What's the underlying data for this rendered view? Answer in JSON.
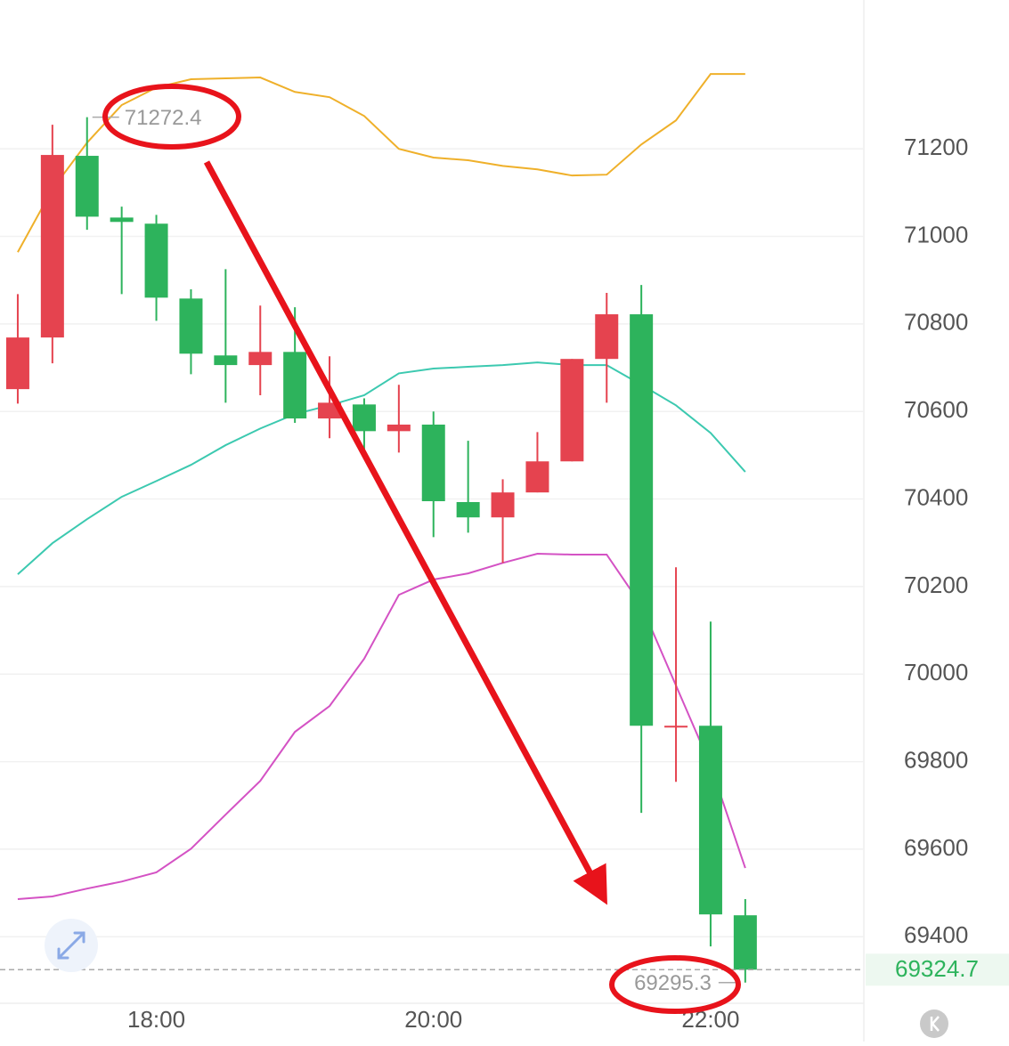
{
  "chart_data": {
    "type": "candlestick",
    "categories": [
      null,
      null,
      null,
      null,
      "18:00",
      null,
      null,
      null,
      null,
      null,
      null,
      null,
      "20:00",
      null,
      null,
      null,
      null,
      null,
      null,
      null,
      "22:00",
      null
    ],
    "open": [
      70651,
      70769,
      71184,
      71043,
      71029,
      70858,
      70728,
      70706,
      70736,
      70584,
      70616,
      70555,
      70570,
      70393,
      70358,
      70415,
      70486,
      70720,
      70822,
      69882,
      69882,
      69449
    ],
    "high": [
      70868,
      71255,
      71272.4,
      71068,
      71049,
      70879,
      70925,
      70842,
      70838,
      70726,
      70630,
      70661,
      70600,
      70533,
      70445,
      70553,
      70720,
      70871,
      70889,
      70244,
      70120,
      69486
    ],
    "low": [
      70618,
      70710,
      71015,
      70868,
      70807,
      70685,
      70620,
      70637,
      70574,
      70539,
      70513,
      70506,
      70313,
      70323,
      70254,
      70415,
      70486,
      70620,
      69683,
      69754,
      69378,
      69295.3
    ],
    "close": [
      70769,
      71186,
      71045,
      71033,
      70860,
      70732,
      70706,
      70736,
      70584,
      70620,
      70555,
      70570,
      70395,
      70358,
      70415,
      70486,
      70720,
      70822,
      69882,
      69882,
      69451,
      69324.7
    ],
    "up_color": "#e5434f",
    "down_color": "#2db35c",
    "overlays": [
      {
        "color": "#efb02a",
        "values": [
          70964,
          71108,
          71214,
          71300,
          71340,
          71359,
          71361,
          71363,
          71330,
          71318,
          71275,
          71200,
          71180,
          71174,
          71161,
          71153,
          71139,
          71141,
          71210,
          71265,
          71371,
          71371
        ]
      },
      {
        "color": "#3cc9b0",
        "values": [
          70228,
          70299,
          70354,
          70405,
          70441,
          70478,
          70523,
          70561,
          70594,
          70614,
          70637,
          70687,
          70698,
          70702,
          70706,
          70712,
          70706,
          70706,
          70661,
          70614,
          70551,
          70462
        ]
      },
      {
        "color": "#d452c4",
        "values": [
          69486,
          69492,
          69510,
          69526,
          69547,
          69601,
          69679,
          69756,
          69868,
          69927,
          70035,
          70181,
          70216,
          70230,
          70254,
          70275,
          70273,
          70273,
          70157,
          69974,
          69791,
          69557
        ]
      }
    ],
    "ylim": [
      69248,
      71540
    ],
    "yticks": [
      69400,
      69600,
      69800,
      70000,
      70200,
      70400,
      70600,
      70800,
      71000,
      71200
    ],
    "grid": true
  }
}
